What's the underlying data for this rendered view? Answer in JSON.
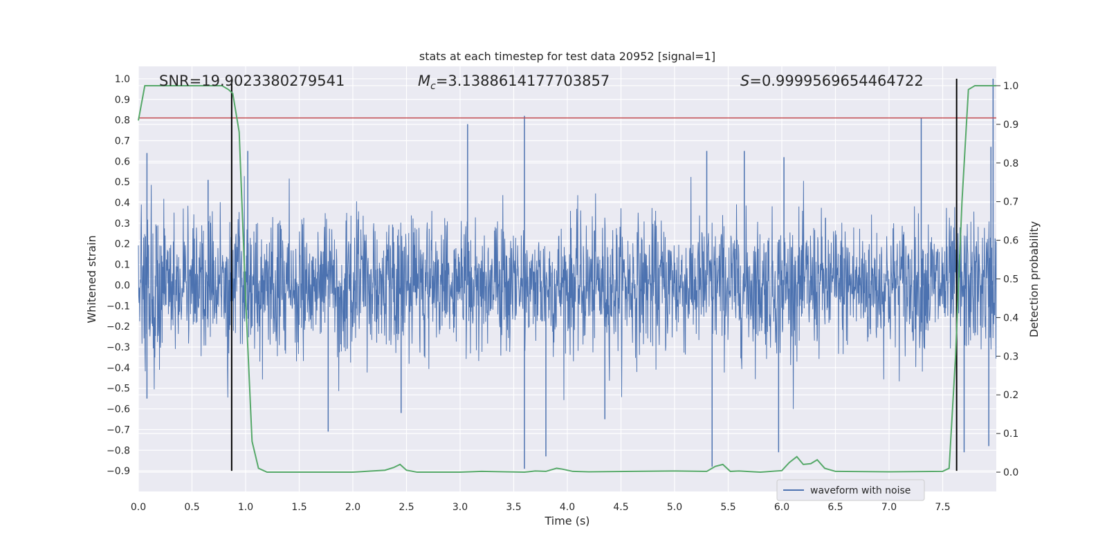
{
  "chart_data": {
    "type": "line",
    "title": "stats at each timestep for test data 20952 [signal=1]",
    "xlabel": "Time (s)",
    "ylabel": "Whitened strain",
    "ylabel_right": "Detection probability",
    "xlim": [
      0.0,
      8.0
    ],
    "ylim": [
      -1.0,
      1.06
    ],
    "ylim_right": [
      -0.05,
      1.05
    ],
    "x_ticks": [
      "0.0",
      "0.5",
      "1.0",
      "1.5",
      "2.0",
      "2.5",
      "3.0",
      "3.5",
      "4.0",
      "4.5",
      "5.0",
      "5.5",
      "6.0",
      "6.5",
      "7.0",
      "7.5"
    ],
    "y_ticks": [
      "1.0",
      "0.9",
      "0.8",
      "0.7",
      "0.6",
      "0.5",
      "0.4",
      "0.3",
      "0.2",
      "0.1",
      "0.0",
      "−0.1",
      "−0.2",
      "−0.3",
      "−0.4",
      "−0.5",
      "−0.6",
      "−0.7",
      "−0.8",
      "−0.9"
    ],
    "y_ticks_right": [
      "1.0",
      "0.9",
      "0.8",
      "0.7",
      "0.6",
      "0.5",
      "0.4",
      "0.3",
      "0.2",
      "0.1",
      "0.0"
    ],
    "annotations": {
      "snr": "SNR=19.9023380279541",
      "mc_symbol": "M",
      "mc_sub": "c",
      "mc_value": "=3.1388614177703857",
      "s_symbol": "S",
      "s_value": "=0.9999569654464722"
    },
    "grid": true,
    "legend_placement": "lower-right",
    "legend_entry": "waveform with noise",
    "series": [
      {
        "name": "waveform with noise",
        "axis": "left",
        "color": "#4c72b0",
        "noise_sigma": 0.16,
        "spikes": [
          {
            "x": 0.08,
            "y": 0.64
          },
          {
            "x": 0.08,
            "y": -0.55
          },
          {
            "x": 0.65,
            "y": 0.51
          },
          {
            "x": 1.02,
            "y": 0.65
          },
          {
            "x": 1.77,
            "y": -0.71
          },
          {
            "x": 2.45,
            "y": -0.62
          },
          {
            "x": 3.07,
            "y": 0.78
          },
          {
            "x": 3.6,
            "y": 0.82
          },
          {
            "x": 3.6,
            "y": -0.89
          },
          {
            "x": 3.8,
            "y": -0.83
          },
          {
            "x": 4.35,
            "y": -0.65
          },
          {
            "x": 5.35,
            "y": -0.88
          },
          {
            "x": 5.3,
            "y": 0.65
          },
          {
            "x": 5.65,
            "y": 0.65
          },
          {
            "x": 5.97,
            "y": -0.81
          },
          {
            "x": 6.02,
            "y": 0.62
          },
          {
            "x": 7.3,
            "y": 0.81
          },
          {
            "x": 7.7,
            "y": -0.81
          },
          {
            "x": 7.93,
            "y": -0.78
          },
          {
            "x": 7.97,
            "y": 1.0
          },
          {
            "x": 7.95,
            "y": 0.67
          }
        ]
      },
      {
        "name": "",
        "axis": "right",
        "color": "#55a868",
        "x": [
          0.0,
          0.06,
          0.12,
          0.2,
          0.4,
          0.6,
          0.78,
          0.84,
          0.88,
          0.94,
          1.0,
          1.06,
          1.12,
          1.2,
          1.5,
          2.0,
          2.3,
          2.38,
          2.44,
          2.5,
          2.6,
          3.0,
          3.2,
          3.6,
          3.7,
          3.8,
          3.9,
          3.95,
          4.05,
          4.2,
          5.0,
          5.3,
          5.38,
          5.45,
          5.52,
          5.6,
          5.8,
          6.0,
          6.07,
          6.14,
          6.2,
          6.27,
          6.33,
          6.4,
          6.5,
          7.0,
          7.5,
          7.56,
          7.62,
          7.68,
          7.74,
          7.8,
          7.9,
          8.0
        ],
        "values": [
          0.91,
          1.0,
          1.0,
          1.0,
          1.0,
          1.0,
          1.0,
          0.99,
          0.98,
          0.88,
          0.45,
          0.08,
          0.01,
          0.0,
          0.0,
          0.0,
          0.005,
          0.012,
          0.02,
          0.005,
          0.0,
          0.0,
          0.002,
          0.0,
          0.003,
          0.002,
          0.01,
          0.008,
          0.002,
          0.001,
          0.003,
          0.002,
          0.015,
          0.02,
          0.002,
          0.003,
          0.0,
          0.004,
          0.025,
          0.04,
          0.02,
          0.022,
          0.032,
          0.01,
          0.002,
          0.001,
          0.002,
          0.01,
          0.3,
          0.7,
          0.99,
          1.0,
          1.0,
          1.0
        ]
      }
    ],
    "threshold_line": {
      "y": 0.81,
      "axis": "left",
      "color": "#c44e52"
    },
    "vertical_lines": [
      {
        "x": 0.87,
        "color": "#000000"
      },
      {
        "x": 7.63,
        "color": "#000000"
      }
    ]
  }
}
